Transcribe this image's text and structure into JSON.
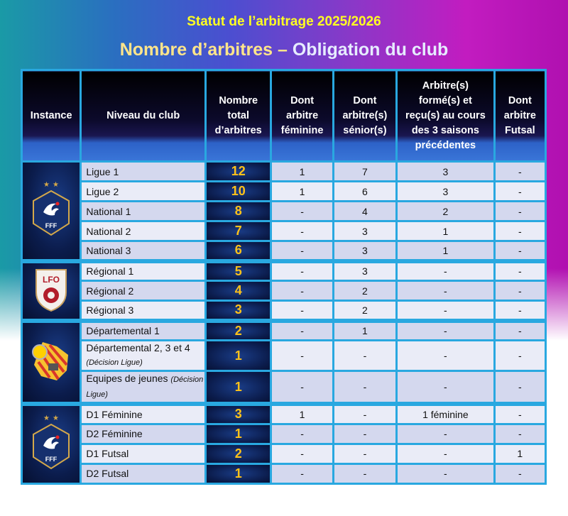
{
  "title": "Statut de l’arbitrage 2025/2026",
  "subtitle_part1": "Nombre d’arbitres –",
  "subtitle_part2": "Obligation du club",
  "headers": [
    "Instance",
    "Niveau du club",
    "Nombre total d’arbitres",
    "Dont arbitre féminine",
    "Dont arbitre(s) sénior(s)",
    "Arbitre(s) formé(s) et reçu(s) au cours des 3 saisons précédentes",
    "Dont arbitre Futsal"
  ],
  "groups": [
    {
      "logo": "fff-logo",
      "logo_text": "FFF",
      "rows": [
        {
          "level": "Ligue 1",
          "total": "12",
          "fem": "1",
          "sen": "7",
          "form": "3",
          "futsal": "-"
        },
        {
          "level": "Ligue 2",
          "total": "10",
          "fem": "1",
          "sen": "6",
          "form": "3",
          "futsal": "-"
        },
        {
          "level": "National 1",
          "total": "8",
          "fem": "-",
          "sen": "4",
          "form": "2",
          "futsal": "-"
        },
        {
          "level": "National 2",
          "total": "7",
          "fem": "-",
          "sen": "3",
          "form": "1",
          "futsal": "-"
        },
        {
          "level": "National 3",
          "total": "6",
          "fem": "-",
          "sen": "3",
          "form": "1",
          "futsal": "-"
        }
      ]
    },
    {
      "logo": "lfo-logo",
      "logo_text": "LFO",
      "rows": [
        {
          "level": "Régional 1",
          "total": "5",
          "fem": "-",
          "sen": "3",
          "form": "-",
          "futsal": "-"
        },
        {
          "level": "Régional 2",
          "total": "4",
          "fem": "-",
          "sen": "2",
          "form": "-",
          "futsal": "-"
        },
        {
          "level": "Régional 3",
          "total": "3",
          "fem": "-",
          "sen": "2",
          "form": "-",
          "futsal": "-"
        }
      ]
    },
    {
      "logo": "district-logo",
      "rows": [
        {
          "level": "Départemental 1",
          "total": "2",
          "fem": "-",
          "sen": "1",
          "form": "-",
          "futsal": "-"
        },
        {
          "level": "Départemental 2, 3 et 4",
          "note": "(Décision Ligue)",
          "total": "1",
          "fem": "-",
          "sen": "-",
          "form": "-",
          "futsal": "-"
        },
        {
          "level": "Equipes de jeunes",
          "note": "(Décision Ligue)",
          "total": "1",
          "fem": "-",
          "sen": "-",
          "form": "-",
          "futsal": "-"
        }
      ]
    },
    {
      "logo": "fff-logo",
      "logo_text": "FFF",
      "rows": [
        {
          "level": "D1 Féminine",
          "total": "3",
          "fem": "1",
          "sen": "-",
          "form": "1 féminine",
          "futsal": "-"
        },
        {
          "level": "D2 Féminine",
          "total": "1",
          "fem": "-",
          "sen": "-",
          "form": "-",
          "futsal": "-"
        },
        {
          "level": "D1 Futsal",
          "total": "2",
          "fem": "-",
          "sen": "-",
          "form": "-",
          "futsal": "1"
        },
        {
          "level": "D2 Futsal",
          "total": "1",
          "fem": "-",
          "sen": "-",
          "form": "-",
          "futsal": "-"
        }
      ]
    }
  ]
}
